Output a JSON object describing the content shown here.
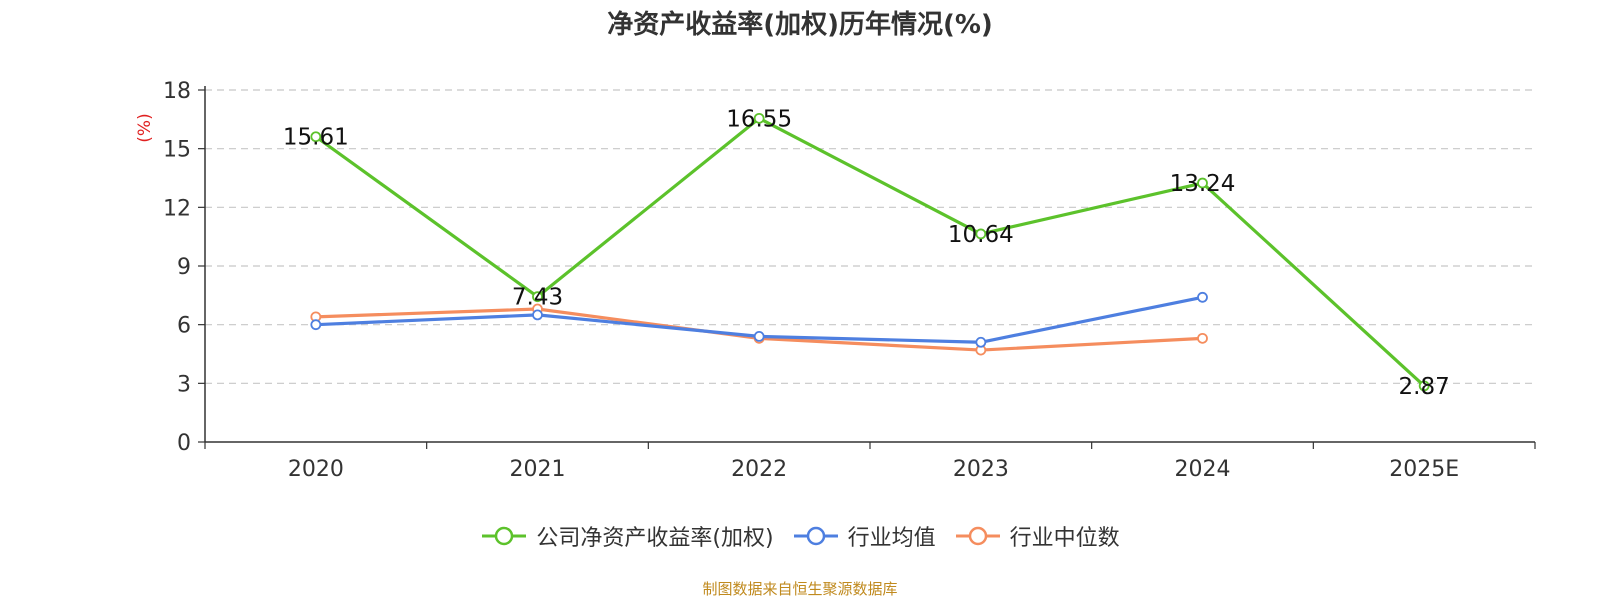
{
  "chart_data": {
    "type": "line",
    "title": "净资产收益率(加权)历年情况(%)",
    "ylabel": "(%)",
    "xlabel": "",
    "categories": [
      "2020",
      "2021",
      "2022",
      "2023",
      "2024",
      "2025E"
    ],
    "ylim": [
      0,
      18
    ],
    "yticks": [
      0,
      3,
      6,
      9,
      12,
      15,
      18
    ],
    "grid": true,
    "legend_position": "bottom-center",
    "series": [
      {
        "name": "公司净资产收益率(加权)",
        "color": "#5cc22b",
        "values": [
          15.61,
          7.43,
          16.55,
          10.64,
          13.24,
          2.87
        ],
        "labels": [
          "15.61",
          "7.43",
          "16.55",
          "10.64",
          "13.24",
          "2.87"
        ]
      },
      {
        "name": "行业均值",
        "color": "#4e7fe0",
        "values": [
          6.0,
          6.5,
          5.4,
          5.1,
          7.4,
          null
        ]
      },
      {
        "name": "行业中位数",
        "color": "#f58d5e",
        "values": [
          6.4,
          6.8,
          5.3,
          4.7,
          5.3,
          null
        ]
      }
    ]
  },
  "source": "制图数据来自恒生聚源数据库"
}
